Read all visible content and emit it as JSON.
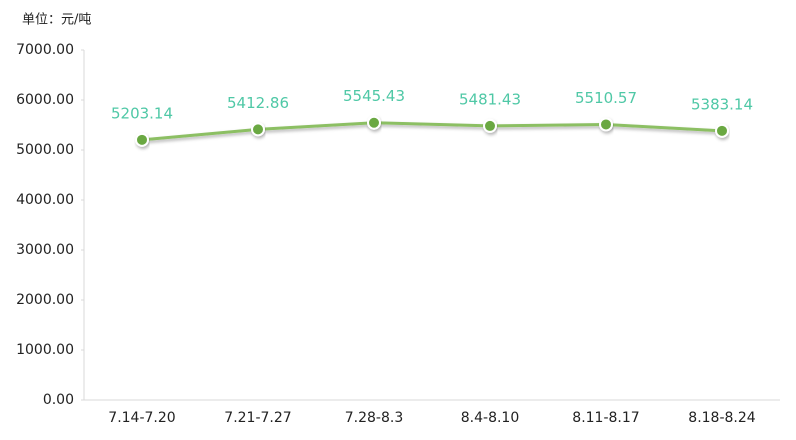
{
  "chart_data": {
    "type": "line",
    "unit_label": "单位：元/吨",
    "categories": [
      "7.14-7.20",
      "7.21-7.27",
      "7.28-8.3",
      "8.4-8.10",
      "8.11-8.17",
      "8.18-8.24"
    ],
    "values": [
      5203.14,
      5412.86,
      5545.43,
      5481.43,
      5510.57,
      5383.14
    ],
    "color": "#8cbf64",
    "marker_color": "#6aa842",
    "label_color": "#4fc8a6",
    "ylim": [
      0,
      7000
    ],
    "yticks": [
      {
        "value": 0,
        "label": "0.00"
      },
      {
        "value": 1000,
        "label": "1000.00"
      },
      {
        "value": 2000,
        "label": "2000.00"
      },
      {
        "value": 3000,
        "label": "3000.00"
      },
      {
        "value": 4000,
        "label": "4000.00"
      },
      {
        "value": 5000,
        "label": "5000.00"
      },
      {
        "value": 6000,
        "label": "6000.00"
      },
      {
        "value": 7000,
        "label": "7000.00"
      }
    ],
    "grid": false
  }
}
